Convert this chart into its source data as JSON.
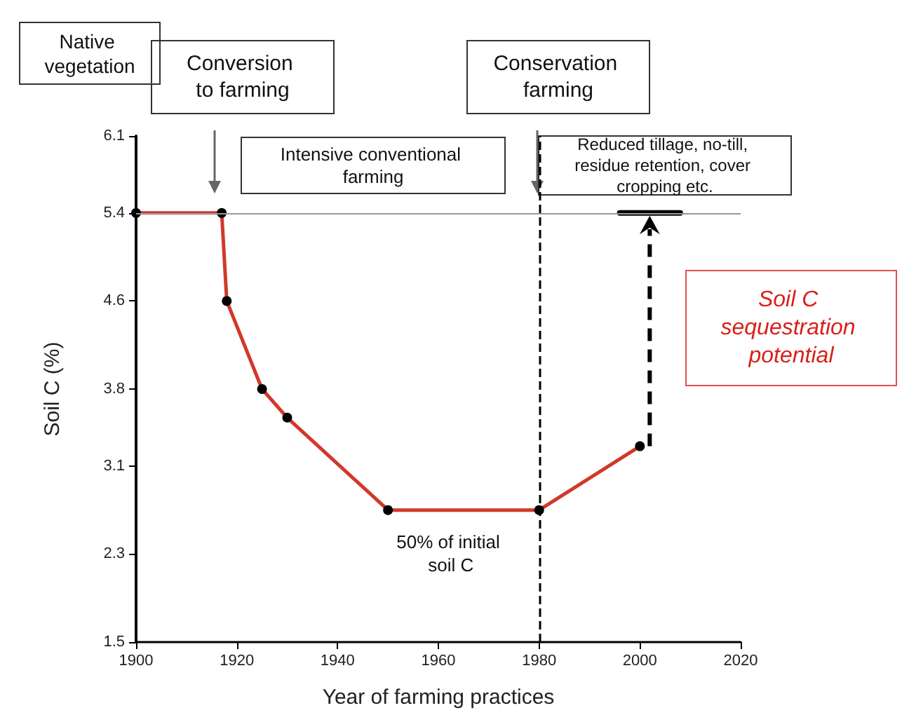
{
  "chart_data": {
    "type": "line",
    "xlabel": "Year of farming practices",
    "ylabel": "Soil C (%)",
    "xlim": [
      1900,
      2020
    ],
    "xticks": [
      1900,
      1920,
      1940,
      1960,
      1980,
      2000,
      2020
    ],
    "ylim": [
      1.5,
      6.1
    ],
    "yticks": [
      1.5,
      2.3,
      3.1,
      3.8,
      4.6,
      5.4,
      6.1
    ],
    "marker": "circle",
    "grid": false,
    "series": [
      {
        "color": "#d0392b",
        "x": [
          1900,
          1917,
          1918,
          1925,
          1930,
          1950,
          1980,
          2000
        ],
        "values": [
          5.4,
          5.4,
          4.6,
          3.8,
          3.54,
          2.7,
          2.7,
          3.28
        ]
      },
      {
        "color": "#000000",
        "marker": "none",
        "x": [
          1996,
          2008
        ],
        "values": [
          5.4,
          5.4
        ]
      }
    ],
    "ref_lines": [
      {
        "axis": "y",
        "value": 5.4,
        "color": "#999999",
        "line_style": "solid"
      },
      {
        "axis": "x",
        "value": 1980,
        "color": "#000000",
        "line_style": "dashed"
      }
    ],
    "annotations": [
      "Native vegetation",
      "Conversion to farming",
      "Conservation farming",
      "Intensive conventional farming",
      "Reduced tillage, no-till, residue retention, cover cropping etc.",
      {
        "text": "50% of initial soil C",
        "x": 1980,
        "y": 2.7
      },
      "Soil C sequestration potential"
    ]
  }
}
